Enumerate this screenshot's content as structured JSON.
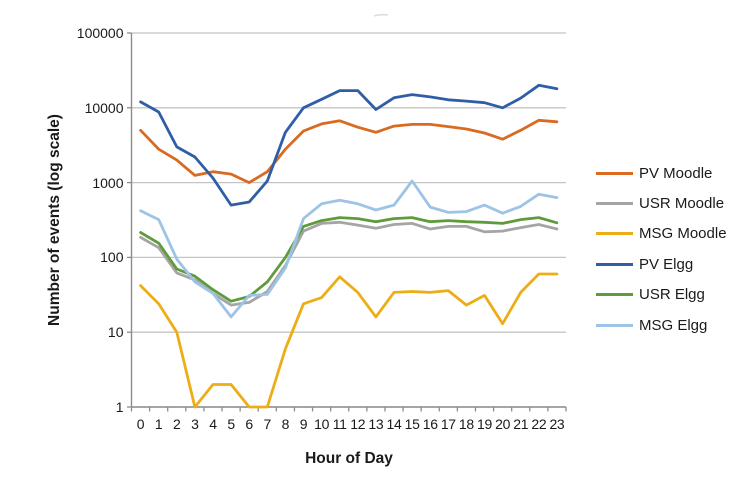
{
  "chart_data": {
    "type": "line",
    "title": "",
    "xlabel": "Hour of Day",
    "ylabel": "Number of events (log scale)",
    "x_categories": [
      "0",
      "1",
      "2",
      "3",
      "4",
      "5",
      "6",
      "7",
      "8",
      "9",
      "10",
      "11",
      "12",
      "13",
      "14",
      "15",
      "16",
      "17",
      "18",
      "19",
      "20",
      "21",
      "22",
      "23"
    ],
    "y_scale": "log10",
    "ylim": [
      1,
      100000
    ],
    "y_ticks": [
      1,
      10,
      100,
      1000,
      10000,
      100000
    ],
    "y_tick_labels": [
      "1",
      "10",
      "100",
      "1000",
      "10000",
      "100000"
    ],
    "grid": "horizontal-only",
    "legend_position": "right",
    "series": [
      {
        "name": "PV Moodle",
        "color": "#D96A20",
        "values": [
          5000,
          2800,
          2000,
          1250,
          1400,
          1300,
          1000,
          1400,
          2800,
          4900,
          6100,
          6700,
          5500,
          4700,
          5700,
          6000,
          6000,
          5600,
          5200,
          4600,
          3800,
          5000,
          6800,
          6500
        ]
      },
      {
        "name": "USR Moodle",
        "color": "#A5A5A5",
        "values": [
          185,
          135,
          62,
          50,
          33,
          23,
          25,
          35,
          78,
          225,
          285,
          295,
          270,
          245,
          275,
          285,
          240,
          260,
          260,
          220,
          225,
          250,
          275,
          240
        ]
      },
      {
        "name": "MSG Moodle",
        "color": "#EDAD17",
        "values": [
          42,
          24,
          10,
          1,
          2,
          2,
          1,
          1,
          6,
          24,
          29,
          55,
          34,
          16,
          34,
          35,
          34,
          36,
          23,
          31,
          13,
          34,
          60,
          60
        ]
      },
      {
        "name": "PV Elgg",
        "color": "#2F5EA7",
        "values": [
          12000,
          8800,
          3000,
          2200,
          1150,
          500,
          550,
          1050,
          4700,
          10000,
          13000,
          17000,
          17000,
          9500,
          13600,
          15000,
          14000,
          12800,
          12300,
          11700,
          10000,
          13500,
          20000,
          18000
        ]
      },
      {
        "name": "USR Elgg",
        "color": "#5F9B3C",
        "values": [
          215,
          155,
          70,
          56,
          37,
          26,
          30,
          47,
          100,
          260,
          310,
          340,
          330,
          300,
          330,
          340,
          300,
          310,
          300,
          295,
          285,
          320,
          340,
          290
        ]
      },
      {
        "name": "MSG Elgg",
        "color": "#9DC3E6",
        "values": [
          420,
          320,
          95,
          47,
          33,
          16,
          31,
          32,
          72,
          330,
          520,
          580,
          520,
          430,
          500,
          1050,
          470,
          400,
          410,
          500,
          390,
          480,
          700,
          630
        ]
      }
    ],
    "colors": {
      "gridline": "#c4c4c4",
      "axis": "#8c8c8c",
      "text": "#1a1a1a"
    }
  }
}
